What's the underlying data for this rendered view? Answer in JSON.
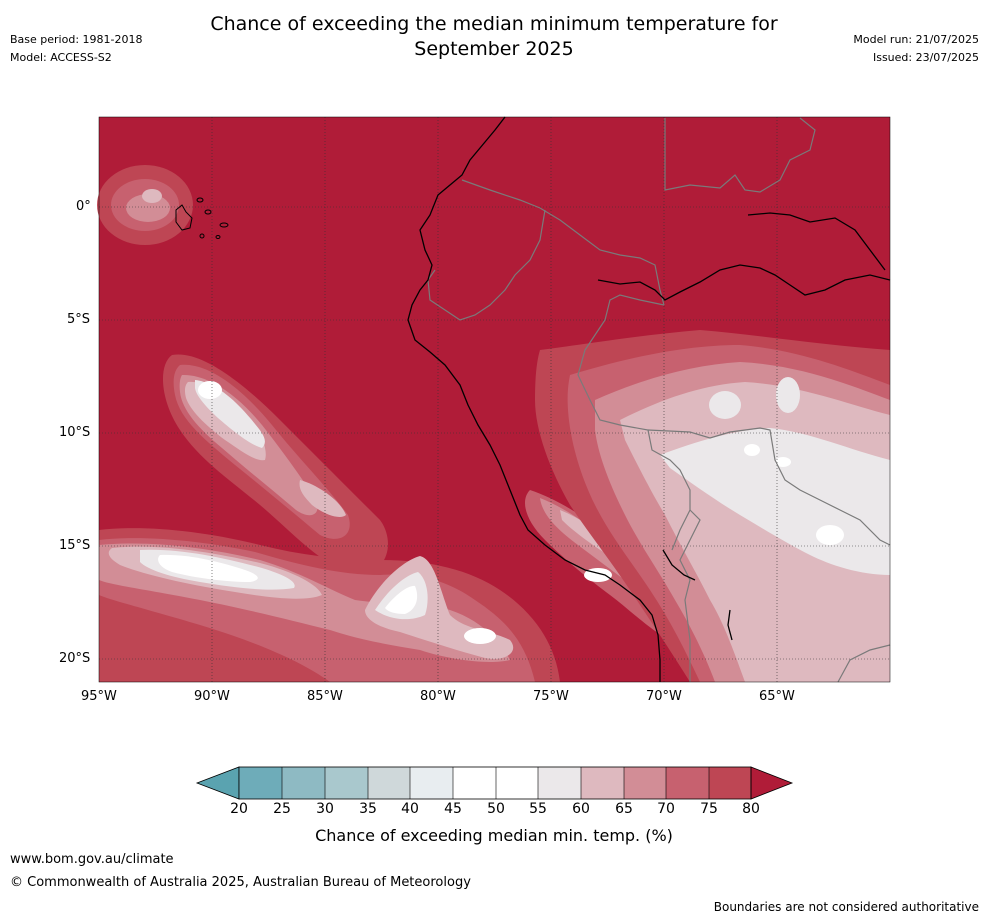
{
  "title_line1": "Chance of exceeding the median minimum temperature for",
  "title_line2": "September 2025",
  "meta_left": {
    "base_period": "Base period: 1981-2018",
    "model": "Model: ACCESS-S2"
  },
  "meta_right": {
    "model_run": "Model run: 21/07/2025",
    "issued": "Issued: 23/07/2025"
  },
  "map": {
    "lat_labels": [
      "0°",
      "5°S",
      "10°S",
      "15°S",
      "20°S"
    ],
    "lon_labels": [
      "95°W",
      "90°W",
      "85°W",
      "80°W",
      "75°W",
      "70°W",
      "65°W"
    ]
  },
  "colorbar": {
    "ticks": [
      "20",
      "25",
      "30",
      "35",
      "40",
      "45",
      "50",
      "55",
      "60",
      "65",
      "70",
      "75",
      "80"
    ],
    "colors": [
      "#5aa3b0",
      "#6eacb9",
      "#8ebac3",
      "#a9c8cd",
      "#cfd8da",
      "#e8edf0",
      "#ffffff",
      "#ffffff",
      "#ebe8ea",
      "#deb9bf",
      "#d28d96",
      "#c7616f",
      "#be4654",
      "#b01c38"
    ],
    "label": "Chance of exceeding median min. temp. (%)"
  },
  "footer": {
    "url": "www.bom.gov.au/climate",
    "copyright": "© Commonwealth of Australia 2025, Australian Bureau of Meteorology",
    "disclaimer": "Boundaries are not considered authoritative"
  }
}
